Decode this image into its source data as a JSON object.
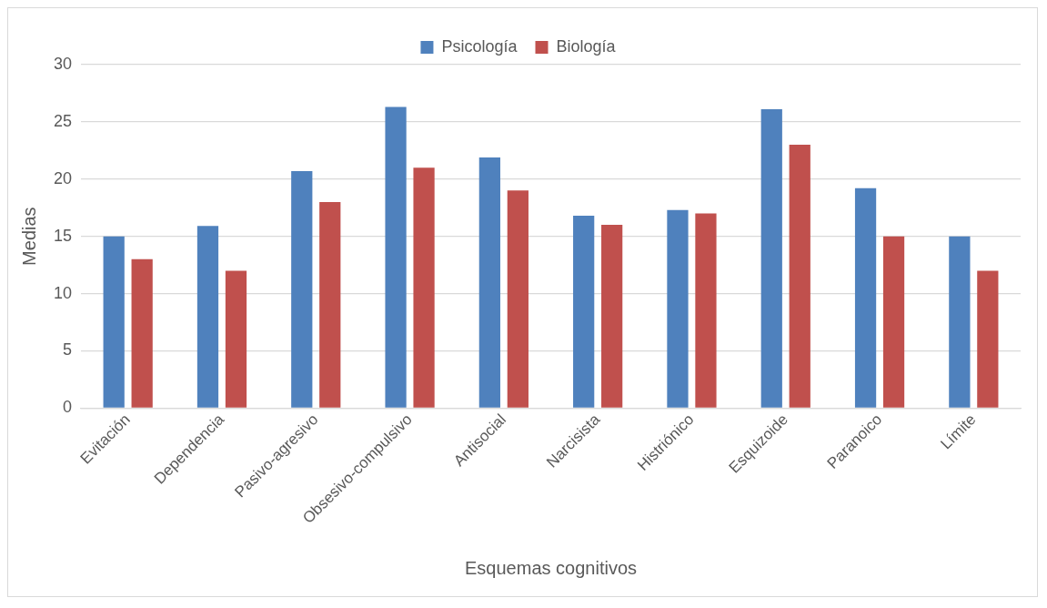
{
  "chart_data": {
    "type": "bar",
    "xlabel": "Esquemas cognitivos",
    "ylabel": "Medias",
    "categories": [
      "Evitación",
      "Dependencia",
      "Pasivo-agresivo",
      "Obsesivo-compulsivo",
      "Antisocial",
      "Narcisista",
      "Histriónico",
      "Esquizoide",
      "Paranoico",
      "Límite"
    ],
    "series": [
      {
        "name": "Psicología",
        "color": "#4f81bd",
        "values": [
          15,
          15.9,
          20.7,
          26.3,
          21.9,
          16.8,
          17.3,
          26.1,
          19.2,
          15
        ]
      },
      {
        "name": "Biología",
        "color": "#c0504d",
        "values": [
          13,
          12,
          18,
          21,
          19,
          16,
          17,
          23,
          15,
          12
        ]
      }
    ],
    "ylim": [
      0,
      30
    ],
    "yticks": [
      0,
      5,
      10,
      15,
      20,
      25,
      30
    ],
    "grid": "y",
    "legend": "top"
  }
}
